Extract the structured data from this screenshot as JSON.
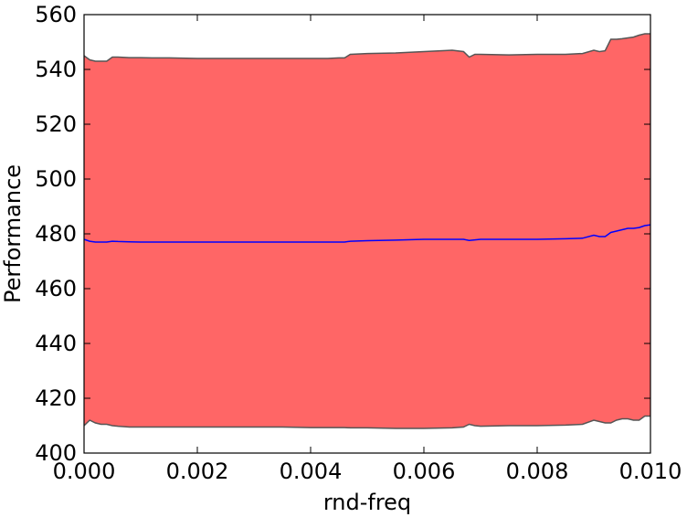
{
  "chart_data": {
    "type": "area",
    "title": "",
    "xlabel": "rnd-freq",
    "ylabel": "Performance",
    "xlim": [
      0.0,
      0.01
    ],
    "ylim": [
      400,
      560
    ],
    "xticks": [
      "0.000",
      "0.002",
      "0.004",
      "0.006",
      "0.008",
      "0.010"
    ],
    "yticks": [
      "400",
      "420",
      "440",
      "460",
      "480",
      "500",
      "520",
      "540",
      "560"
    ],
    "grid": false,
    "legend": "none",
    "colors": {
      "band_fill": "#ff6666",
      "band_edge": "#555555",
      "mean_line": "#0000ff"
    },
    "x": [
      0.0,
      0.0001,
      0.0002,
      0.0003,
      0.0004,
      0.0005,
      0.0006,
      0.0008,
      0.001,
      0.0012,
      0.0015,
      0.002,
      0.0025,
      0.003,
      0.0035,
      0.004,
      0.0043,
      0.0045,
      0.0046,
      0.0047,
      0.005,
      0.0055,
      0.006,
      0.0065,
      0.0067,
      0.0068,
      0.0069,
      0.007,
      0.0075,
      0.008,
      0.0085,
      0.0088,
      0.009,
      0.0091,
      0.0092,
      0.0093,
      0.0094,
      0.0095,
      0.0096,
      0.0097,
      0.0098,
      0.0099,
      0.01
    ],
    "series": [
      {
        "role": "upper",
        "values": [
          545,
          543.5,
          543,
          543,
          543,
          544.5,
          544.5,
          544.3,
          544.3,
          544.2,
          544.2,
          544,
          544,
          544,
          544,
          544,
          544,
          544.2,
          544.2,
          545.5,
          545.8,
          546,
          546.5,
          547,
          546.5,
          544.5,
          545.5,
          545.5,
          545.3,
          545.5,
          545.5,
          545.8,
          547,
          546.5,
          546.8,
          551,
          551,
          551.2,
          551.5,
          551.8,
          552.5,
          553,
          553
        ]
      },
      {
        "role": "mean",
        "values": [
          478,
          477.3,
          477,
          477,
          477,
          477.3,
          477.2,
          477.1,
          477,
          477,
          477,
          477,
          477,
          477,
          477,
          477,
          477,
          477,
          477,
          477.3,
          477.5,
          477.7,
          478,
          478,
          478,
          477.6,
          477.8,
          478,
          478,
          478,
          478.2,
          478.4,
          479.5,
          479,
          479,
          480.5,
          481,
          481.5,
          482,
          482,
          482.3,
          483,
          483.3
        ]
      },
      {
        "role": "lower",
        "values": [
          410,
          412,
          411,
          410.5,
          410.5,
          410,
          409.8,
          409.5,
          409.5,
          409.5,
          409.5,
          409.5,
          409.5,
          409.5,
          409.5,
          409.3,
          409.3,
          409.3,
          409.3,
          409.2,
          409.2,
          409,
          409,
          409.2,
          409.5,
          410.5,
          410,
          409.8,
          410,
          410,
          410.2,
          410.5,
          412,
          411.5,
          411,
          411,
          412,
          412.5,
          412.5,
          412,
          412,
          413.5,
          413.5
        ]
      }
    ]
  }
}
